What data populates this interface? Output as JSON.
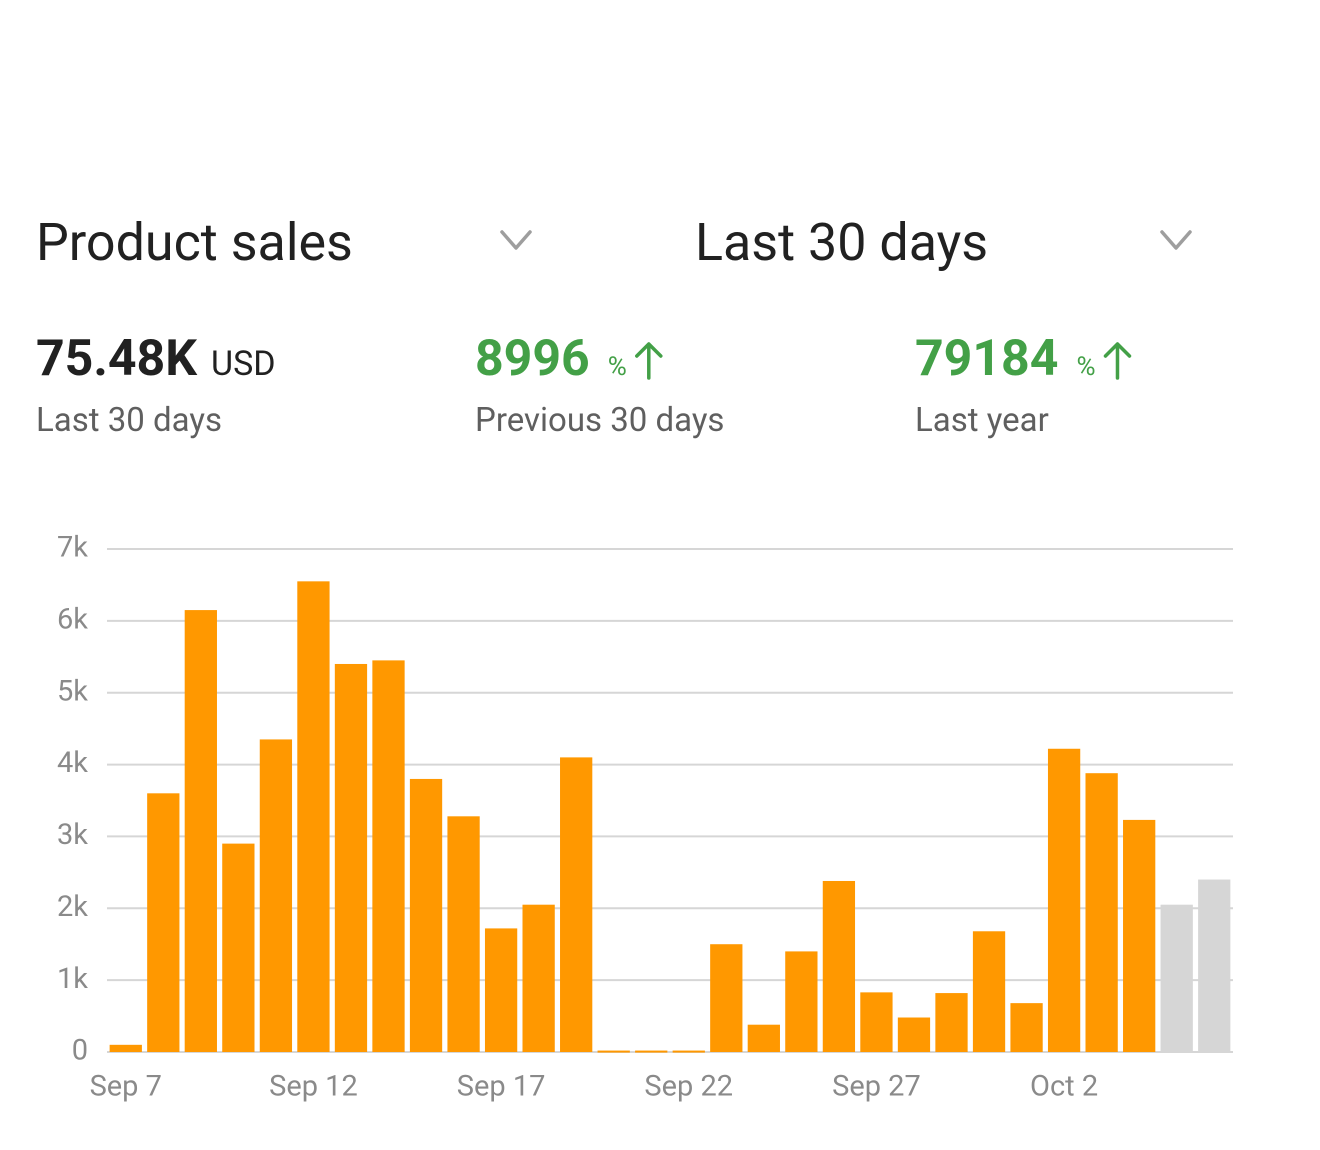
{
  "header": {
    "metric": "Product sales",
    "range": "Last 30 days"
  },
  "stats": [
    {
      "value": "75.48K",
      "unit": "USD",
      "caption": "Last 30 days"
    },
    {
      "value": "8996",
      "unit": "%",
      "caption": "Previous 30 days"
    },
    {
      "value": "79184",
      "unit": "%",
      "caption": "Last year"
    }
  ],
  "chart_data": {
    "type": "bar",
    "categories": [
      "Sep 7",
      null,
      null,
      null,
      null,
      "Sep 12",
      null,
      null,
      null,
      null,
      "Sep 17",
      null,
      null,
      null,
      null,
      "Sep 22",
      null,
      null,
      null,
      null,
      "Sep 27",
      null,
      null,
      null,
      null,
      "Oct 2",
      null,
      null,
      null,
      null
    ],
    "values": [
      100,
      3600,
      6150,
      2900,
      4350,
      6550,
      5400,
      5450,
      3800,
      3280,
      1720,
      2050,
      4100,
      20,
      20,
      20,
      1500,
      380,
      1400,
      2380,
      830,
      480,
      820,
      1680,
      680,
      4220,
      3880,
      3230,
      2050,
      2400
    ],
    "colors": [
      "#ff9800",
      "#ff9800",
      "#ff9800",
      "#ff9800",
      "#ff9800",
      "#ff9800",
      "#ff9800",
      "#ff9800",
      "#ff9800",
      "#ff9800",
      "#ff9800",
      "#ff9800",
      "#ff9800",
      "#ff9800",
      "#ff9800",
      "#ff9800",
      "#ff9800",
      "#ff9800",
      "#ff9800",
      "#ff9800",
      "#ff9800",
      "#ff9800",
      "#ff9800",
      "#ff9800",
      "#ff9800",
      "#ff9800",
      "#ff9800",
      "#ff9800",
      "#d6d6d6",
      "#d6d6d6"
    ],
    "ylim": [
      0,
      7000
    ],
    "yticks": [
      0,
      {
        "value": 1000,
        "label": "1k"
      },
      {
        "value": 2000,
        "label": "2k"
      },
      {
        "value": 3000,
        "label": "3k"
      },
      {
        "value": 4000,
        "label": "4k"
      },
      {
        "value": 5000,
        "label": "5k"
      },
      {
        "value": 6000,
        "label": "6k"
      },
      {
        "value": 7000,
        "label": "7k"
      }
    ],
    "grid": true
  }
}
